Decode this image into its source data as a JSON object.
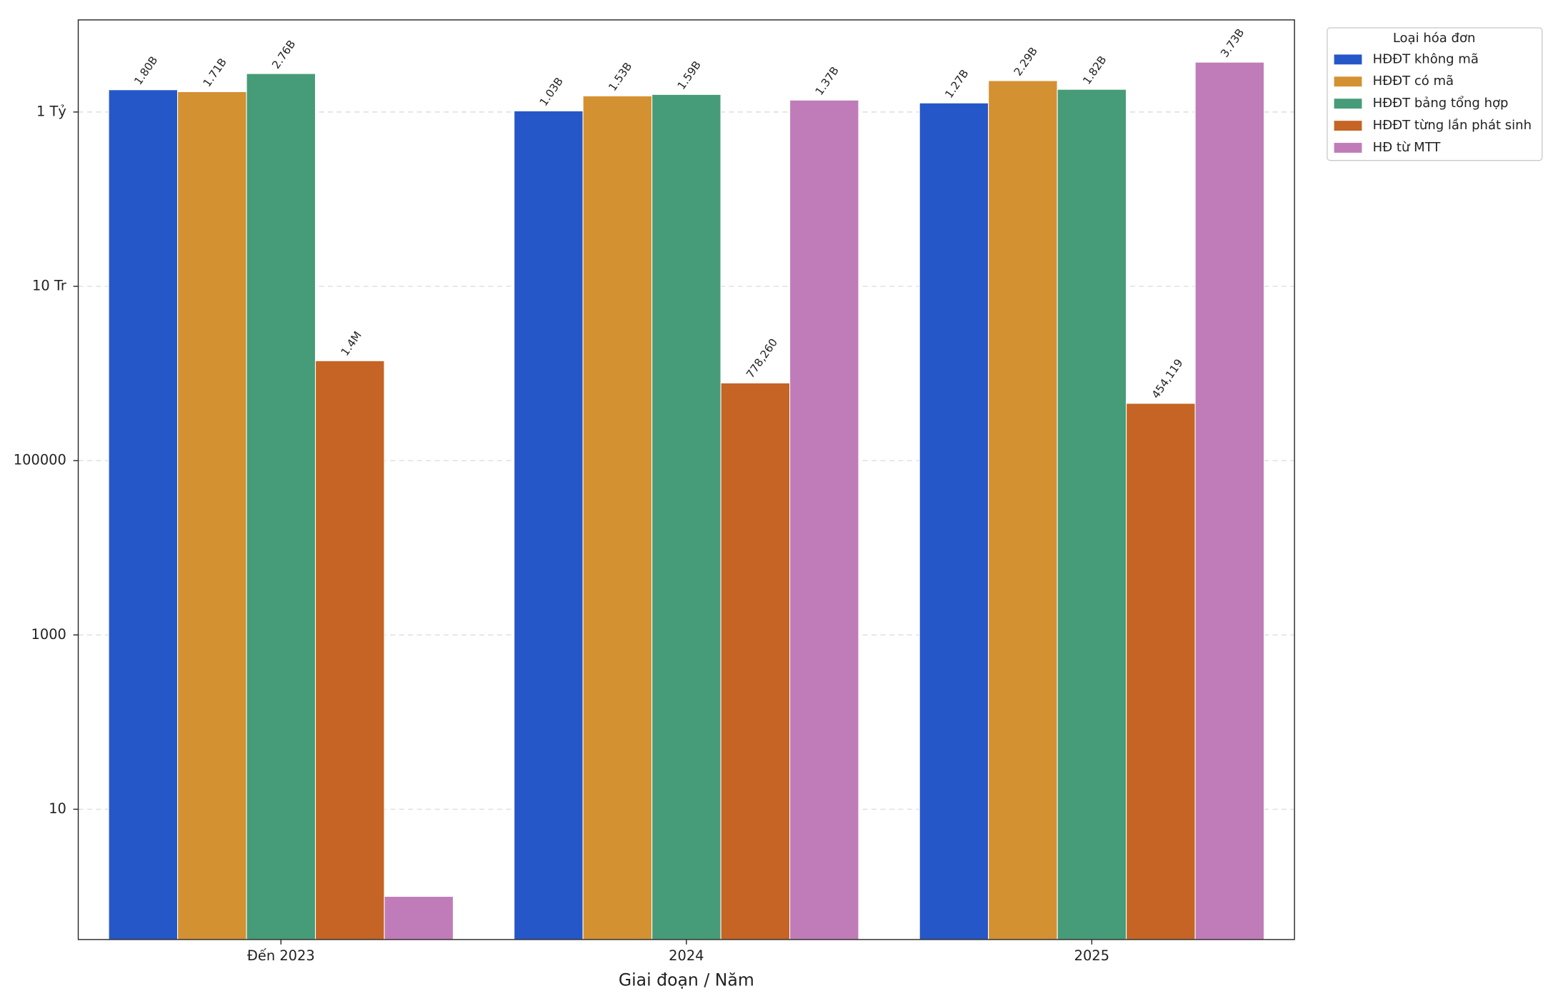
{
  "chart_data": {
    "type": "bar",
    "log_y": true,
    "grid": true,
    "legend": "outside upper right",
    "xlabel": "Giai đoạn / Năm",
    "legend_title": "Loại hóa đơn",
    "categories": [
      "Đến 2023",
      "2024",
      "2025"
    ],
    "series": [
      {
        "name": "HĐĐT không mã",
        "color": "#2657c8",
        "values": [
          1800000000,
          1030000000,
          1270000000
        ],
        "value_labels": [
          "1.80B",
          "1.03B",
          "1.27B"
        ]
      },
      {
        "name": "HĐĐT có mã",
        "color": "#d49132",
        "values": [
          1710000000,
          1530000000,
          2290000000
        ],
        "value_labels": [
          "1.71B",
          "1.53B",
          "2.29B"
        ]
      },
      {
        "name": "HĐĐT bảng tổng hợp",
        "color": "#469c78",
        "values": [
          2760000000,
          1590000000,
          1820000000
        ],
        "value_labels": [
          "2.76B",
          "1.59B",
          "1.82B"
        ]
      },
      {
        "name": "HĐĐT từng lần phát sinh",
        "color": "#c56424",
        "values": [
          1400000,
          778260,
          454119
        ],
        "value_labels": [
          "1.4M",
          "778,260",
          "454,119"
        ]
      },
      {
        "name": "HĐ từ MTT",
        "color": "#c07cb8",
        "values": [
          1,
          1370000000,
          3730000000
        ],
        "value_labels": [
          null,
          "1.37B",
          "3.73B"
        ]
      }
    ],
    "ylim": [
      0.32,
      11400000000
    ],
    "yticks": [
      10,
      1000,
      100000,
      {
        "value": 10000000,
        "label": "10 Tr"
      },
      {
        "value": 1000000000,
        "label": "1 Tỷ"
      }
    ]
  }
}
